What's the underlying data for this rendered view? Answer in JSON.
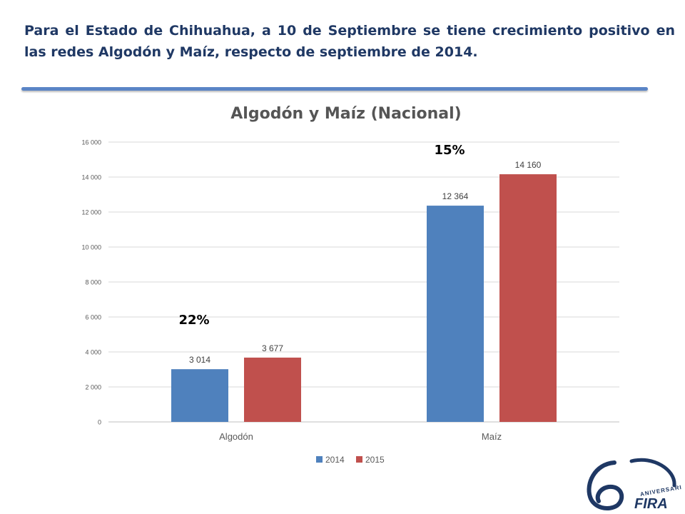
{
  "slide": {
    "title": "Para el Estado de Chihuahua, a 10 de Septiembre se tiene crecimiento positivo en las redes Algodón y Maíz, respecto de septiembre de 2014."
  },
  "logo": {
    "number": "60",
    "caption": "ANIVERSARIO",
    "brand": "FIRA",
    "icon": "fira-60-aniversario-logo",
    "color": "#1f3864"
  },
  "chart_data": {
    "type": "bar",
    "title": "Algodón y Maíz (Nacional)",
    "xlabel": "",
    "ylabel": "",
    "categories": [
      "Algodón",
      "Maíz"
    ],
    "series": [
      {
        "name": "2014",
        "values": [
          3014,
          12364
        ],
        "labels": [
          "3 014",
          "12 364"
        ],
        "color": "#4f81bd"
      },
      {
        "name": "2015",
        "values": [
          3677,
          14160
        ],
        "labels": [
          "3 677",
          "14 160"
        ],
        "color": "#c0504d"
      }
    ],
    "ylim": [
      0,
      16000
    ],
    "yticks": [
      0,
      2000,
      4000,
      6000,
      8000,
      10000,
      12000,
      14000,
      16000
    ],
    "ytick_labels": [
      "0",
      "2 000",
      "4 000",
      "6 000",
      "8 000",
      "10 000",
      "12 000",
      "14 000",
      "16 000"
    ],
    "annotations": [
      {
        "text": "22%",
        "category": "Algodón"
      },
      {
        "text": "15%",
        "category": "Maíz"
      }
    ],
    "grid": true,
    "legend": "bottom"
  }
}
